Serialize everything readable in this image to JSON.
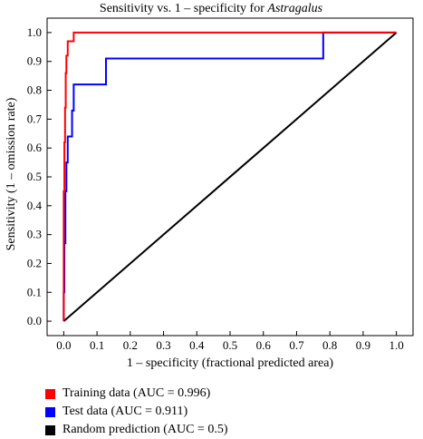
{
  "chart_data": {
    "type": "line",
    "title": "Sensitivity vs. 1 – specificity for ",
    "title_italic": "Astragalus",
    "xlabel": "1 – specificity (fractional predicted area)",
    "ylabel": "Sensitivity (1 – omission rate)",
    "xlim": [
      -0.05,
      1.05
    ],
    "ylim": [
      -0.05,
      1.05
    ],
    "xticks": [
      "0.0",
      "0.1",
      "0.2",
      "0.3",
      "0.4",
      "0.5",
      "0.6",
      "0.7",
      "0.8",
      "0.9",
      "1.0"
    ],
    "yticks": [
      "0.0",
      "0.1",
      "0.2",
      "0.3",
      "0.4",
      "0.5",
      "0.6",
      "0.7",
      "0.8",
      "0.9",
      "1.0"
    ],
    "grid": false,
    "legend_position": "bottom",
    "series": [
      {
        "name": "Training data (AUC = 0.996)",
        "color": "#ff0000",
        "x": [
          0,
          0,
          0.002,
          0.002,
          0.004,
          0.004,
          0.006,
          0.006,
          0.008,
          0.008,
          0.012,
          0.012,
          0.02,
          0.02,
          0.03,
          0.03,
          1.0
        ],
        "y": [
          0,
          0.45,
          0.45,
          0.62,
          0.62,
          0.74,
          0.74,
          0.86,
          0.86,
          0.92,
          0.92,
          0.97,
          0.97,
          0.97,
          0.97,
          1.0,
          1.0
        ]
      },
      {
        "name": "Test data (AUC = 0.911)",
        "color": "#0000ff",
        "x": [
          0,
          0,
          0.002,
          0.002,
          0.005,
          0.005,
          0.008,
          0.008,
          0.012,
          0.012,
          0.025,
          0.025,
          0.03,
          0.03,
          0.127,
          0.127,
          0.78,
          0.78,
          1.0
        ],
        "y": [
          0,
          0.1,
          0.1,
          0.27,
          0.27,
          0.45,
          0.45,
          0.55,
          0.55,
          0.64,
          0.64,
          0.73,
          0.73,
          0.82,
          0.82,
          0.91,
          0.91,
          1.0,
          1.0
        ]
      },
      {
        "name": "Random prediction (AUC = 0.5)",
        "color": "#000000",
        "x": [
          0,
          1
        ],
        "y": [
          0,
          1
        ]
      }
    ]
  }
}
